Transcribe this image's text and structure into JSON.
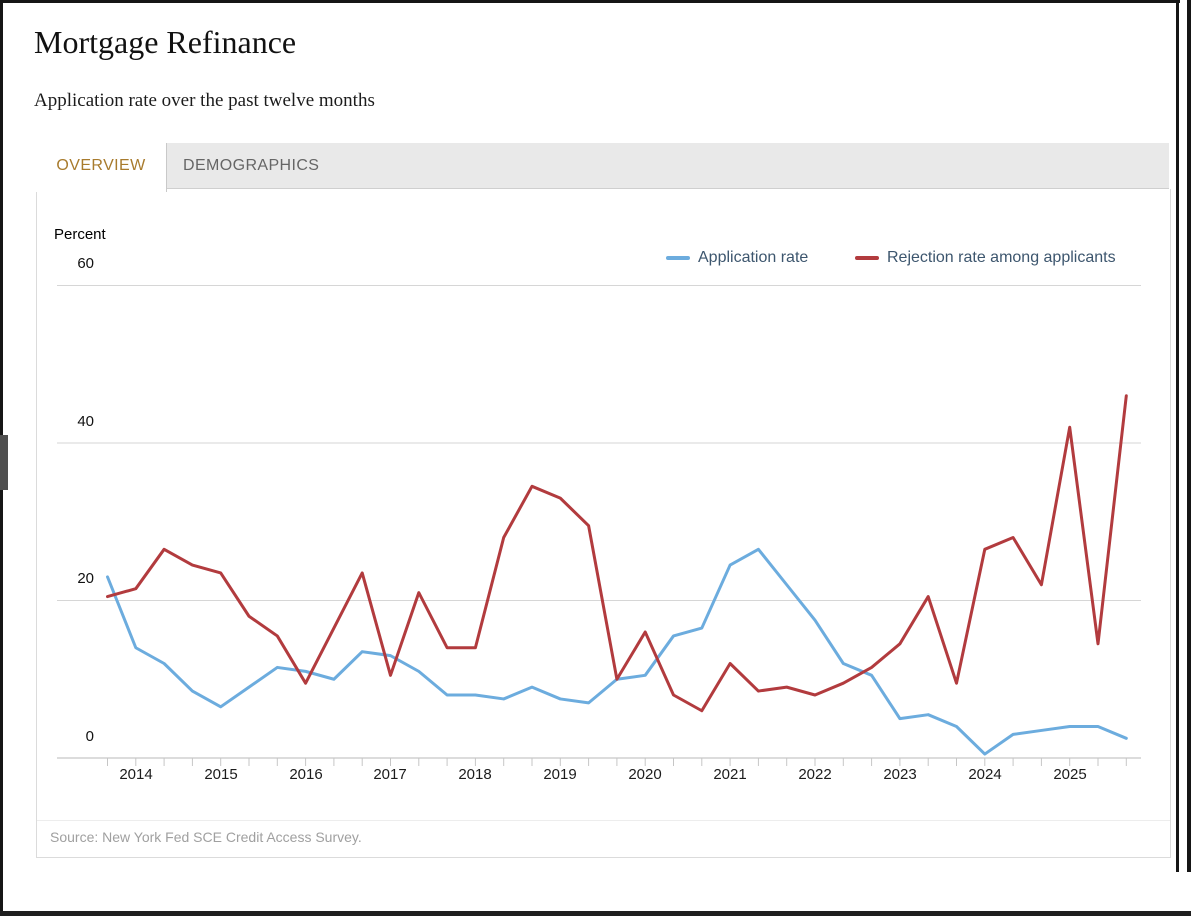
{
  "page": {
    "title": "Mortgage Refinance",
    "subtitle": "Application rate over the past twelve months",
    "source": "Source: New York Fed SCE Credit Access Survey."
  },
  "tabs": [
    {
      "label": "OVERVIEW",
      "active": true
    },
    {
      "label": "DEMOGRAPHICS",
      "active": false
    }
  ],
  "chart": {
    "unit_label": "Percent",
    "y_tick_labels": [
      "60",
      "40",
      "20",
      "0"
    ],
    "legend": [
      {
        "label": "Application rate",
        "color": "#6cacde"
      },
      {
        "label": "Rejection rate among applicants",
        "color": "#b23b3e"
      }
    ]
  },
  "chart_data": {
    "type": "line",
    "title": "Mortgage Refinance",
    "subtitle": "Application rate over the past twelve months",
    "ylabel": "Percent",
    "ylim": [
      0,
      60
    ],
    "yticks": [
      0,
      20,
      40,
      60
    ],
    "grid": "horizontal",
    "legend_position": "top-right",
    "x_year_labels": [
      "2014",
      "2015",
      "2016",
      "2017",
      "2018",
      "2019",
      "2020",
      "2021",
      "2022",
      "2023",
      "2024",
      "2025"
    ],
    "x": [
      "Oct 2013",
      "Feb 2014",
      "Jun 2014",
      "Oct 2014",
      "Feb 2015",
      "Jun 2015",
      "Oct 2015",
      "Feb 2016",
      "Jun 2016",
      "Oct 2016",
      "Feb 2017",
      "Jun 2017",
      "Oct 2017",
      "Feb 2018",
      "Jun 2018",
      "Oct 2018",
      "Feb 2019",
      "Jun 2019",
      "Oct 2019",
      "Feb 2020",
      "Jun 2020",
      "Oct 2020",
      "Feb 2021",
      "Jun 2021",
      "Oct 2021",
      "Feb 2022",
      "Jun 2022",
      "Oct 2022",
      "Feb 2023",
      "Jun 2023",
      "Oct 2023",
      "Feb 2024",
      "Jun 2024",
      "Oct 2024",
      "Feb 2025",
      "Jun 2025",
      "Oct 2025"
    ],
    "series": [
      {
        "name": "Application rate",
        "color": "#6cacde",
        "values": [
          23,
          14,
          12,
          8.5,
          6.5,
          9,
          11.5,
          11,
          10,
          13.5,
          13,
          11,
          8,
          8,
          7.5,
          9,
          7.5,
          7,
          10,
          10.5,
          15.5,
          16.5,
          24.5,
          26.5,
          22,
          17.5,
          12,
          10.5,
          5,
          5.5,
          4,
          0.5,
          3,
          3.5,
          4,
          4,
          2.5
        ]
      },
      {
        "name": "Rejection rate among applicants",
        "color": "#b23b3e",
        "values": [
          20.5,
          21.5,
          26.5,
          24.5,
          23.5,
          18,
          15.5,
          9.5,
          16.5,
          23.5,
          10.5,
          21,
          14,
          14,
          28,
          34.5,
          33,
          29.5,
          10,
          16,
          8,
          6,
          12,
          8.5,
          9,
          8,
          9.5,
          11.5,
          14.5,
          20.5,
          9.5,
          26.5,
          28,
          22,
          42,
          14.5,
          46
        ]
      }
    ]
  }
}
